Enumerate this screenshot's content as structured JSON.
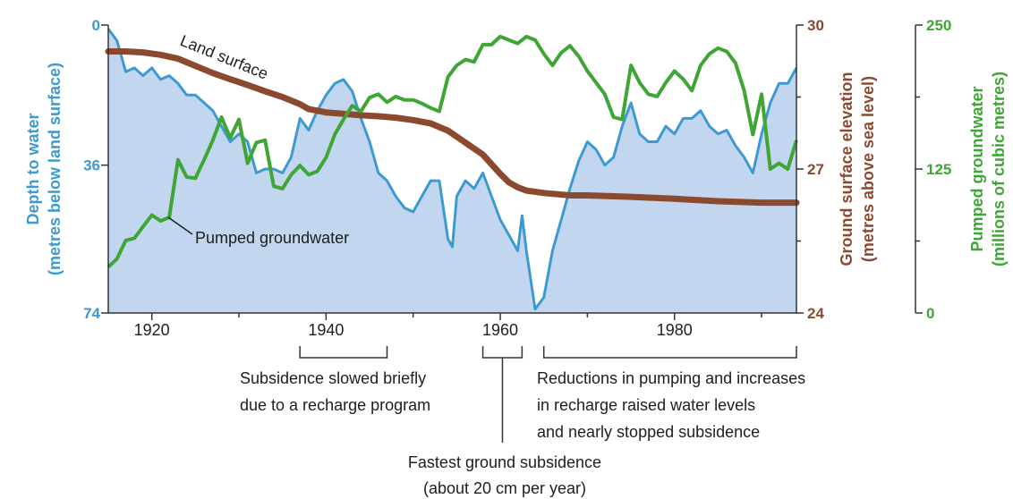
{
  "chart_data": {
    "type": "line",
    "x_range": [
      1915,
      1994
    ],
    "x_ticks": [
      "1920",
      "1940",
      "1960",
      "1980"
    ],
    "axes": {
      "depth": {
        "title_line1": "Depth to water",
        "title_line2": "(metres below land surface)",
        "ticks": [
          "0",
          "36",
          "74"
        ],
        "range": [
          0,
          74
        ],
        "inverted": true,
        "color": "#3d9ad1"
      },
      "elevation": {
        "title_line1": "Ground surface elevation",
        "title_line2": "(metres above sea level)",
        "ticks": [
          "30",
          "27",
          "24"
        ],
        "range": [
          24,
          30
        ],
        "color": "#8b4a2f"
      },
      "pumped": {
        "title_line1": "Pumped groundwater",
        "title_line2": "(millions of cubic metres)",
        "ticks": [
          "250",
          "125",
          "0"
        ],
        "range": [
          0,
          250
        ],
        "color": "#3fa535"
      }
    },
    "series": [
      {
        "name": "Depth to water",
        "axis": "depth",
        "fill_color": "#c2d6ef",
        "x": [
          1915,
          1916,
          1917,
          1918,
          1919,
          1920,
          1921,
          1922,
          1923,
          1924,
          1925,
          1926,
          1927,
          1928,
          1929,
          1930,
          1931,
          1932,
          1933,
          1934,
          1935,
          1936,
          1937,
          1938,
          1939,
          1940,
          1941,
          1942,
          1943,
          1944,
          1945,
          1946,
          1947,
          1948,
          1949,
          1950,
          1951,
          1952,
          1953,
          1954,
          1954.5,
          1955,
          1956,
          1957,
          1958,
          1959,
          1960,
          1961,
          1962,
          1962.5,
          1963,
          1964,
          1965,
          1966,
          1967,
          1968,
          1969,
          1970,
          1971,
          1972,
          1973,
          1974,
          1975,
          1976,
          1977,
          1978,
          1979,
          1980,
          1981,
          1982,
          1983,
          1984,
          1985,
          1986,
          1987,
          1988,
          1989,
          1990,
          1991,
          1992,
          1993,
          1994
        ],
        "values": [
          1,
          4,
          12,
          11,
          13,
          11,
          14,
          13,
          15,
          18,
          18,
          20,
          22,
          26,
          30,
          28,
          30,
          38,
          37,
          37,
          38,
          34,
          24,
          27,
          22,
          18,
          15,
          14,
          17,
          24,
          30,
          38,
          40,
          44,
          47,
          48,
          44,
          40,
          40,
          55,
          57,
          44,
          40,
          42,
          38,
          44,
          50,
          54,
          58,
          49,
          58,
          73,
          70,
          58,
          50,
          42,
          35,
          30,
          32,
          36,
          34,
          26,
          20,
          28,
          30,
          30,
          26,
          28,
          24,
          24,
          22,
          26,
          28,
          27,
          31,
          34,
          38,
          28,
          20,
          15,
          15,
          11
        ]
      },
      {
        "name": "Land surface",
        "axis": "elevation",
        "x": [
          1915,
          1917,
          1919,
          1921,
          1923,
          1925,
          1927,
          1929,
          1931,
          1933,
          1935,
          1937,
          1938,
          1940,
          1942,
          1944,
          1946,
          1948,
          1950,
          1952,
          1954,
          1956,
          1958,
          1960,
          1961,
          1962,
          1963,
          1965,
          1968,
          1970,
          1975,
          1980,
          1985,
          1990,
          1994
        ],
        "values": [
          29.45,
          29.45,
          29.43,
          29.38,
          29.3,
          29.15,
          29.0,
          28.87,
          28.75,
          28.62,
          28.5,
          28.35,
          28.25,
          28.18,
          28.15,
          28.12,
          28.1,
          28.07,
          28.02,
          27.95,
          27.8,
          27.55,
          27.3,
          26.9,
          26.72,
          26.62,
          26.55,
          26.5,
          26.45,
          26.45,
          26.42,
          26.38,
          26.33,
          26.3,
          26.3
        ]
      },
      {
        "name": "Pumped groundwater",
        "axis": "pumped",
        "x": [
          1915,
          1916,
          1917,
          1918,
          1919,
          1920,
          1921,
          1922,
          1923,
          1924,
          1925,
          1926,
          1927,
          1928,
          1929,
          1930,
          1931,
          1932,
          1933,
          1934,
          1935,
          1936,
          1937,
          1938,
          1939,
          1940,
          1941,
          1942,
          1943,
          1944,
          1945,
          1946,
          1947,
          1948,
          1949,
          1950,
          1951,
          1952,
          1953,
          1954,
          1955,
          1956,
          1957,
          1958,
          1959,
          1960,
          1961,
          1962,
          1963,
          1964,
          1965,
          1966,
          1967,
          1968,
          1969,
          1970,
          1971,
          1972,
          1973,
          1974,
          1975,
          1976,
          1977,
          1978,
          1979,
          1980,
          1981,
          1982,
          1983,
          1984,
          1985,
          1986,
          1987,
          1988,
          1989,
          1990,
          1991,
          1992,
          1993,
          1994
        ],
        "values": [
          40,
          47,
          63,
          65,
          75,
          85,
          80,
          83,
          133,
          118,
          117,
          133,
          150,
          170,
          152,
          168,
          130,
          148,
          150,
          110,
          108,
          120,
          128,
          120,
          123,
          135,
          155,
          168,
          180,
          175,
          187,
          190,
          183,
          188,
          185,
          185,
          182,
          178,
          175,
          205,
          215,
          220,
          218,
          233,
          233,
          240,
          237,
          234,
          240,
          237,
          225,
          215,
          226,
          232,
          223,
          210,
          200,
          190,
          170,
          168,
          215,
          200,
          190,
          188,
          200,
          210,
          203,
          193,
          215,
          225,
          230,
          227,
          217,
          193,
          155,
          190,
          125,
          130,
          125,
          150
        ]
      }
    ],
    "labels": {
      "land_surface": "Land surface",
      "pumped_groundwater": "Pumped groundwater"
    },
    "annotations": {
      "recharge": {
        "lines": [
          "Subsidence slowed briefly",
          "due to a recharge program"
        ],
        "range": [
          1937,
          1947
        ]
      },
      "fastest": {
        "lines": [
          "Fastest ground subsidence",
          "(about 20 cm per year)"
        ],
        "range": [
          1958,
          1962.5
        ]
      },
      "reductions": {
        "lines": [
          "Reductions in pumping and increases",
          "in recharge raised water levels",
          "and nearly stopped subsidence"
        ],
        "range": [
          1965,
          1994
        ]
      }
    },
    "text_color": "#1e1e1e"
  }
}
